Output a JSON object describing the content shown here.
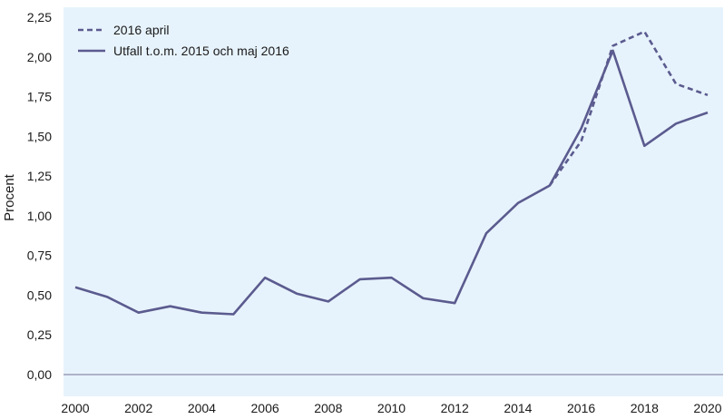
{
  "chart_data": {
    "type": "line",
    "title": "",
    "xlabel": "",
    "ylabel": "Procent",
    "xlim": [
      2000,
      2020
    ],
    "ylim": [
      0,
      2.25
    ],
    "x_ticks": [
      "2000",
      "2002",
      "2004",
      "2006",
      "2008",
      "2010",
      "2012",
      "2014",
      "2016",
      "2018",
      "2020"
    ],
    "y_ticks": [
      "0,00",
      "0,25",
      "0,50",
      "0,75",
      "1,00",
      "1,25",
      "1,50",
      "1,75",
      "2,00",
      "2,25"
    ],
    "grid": false,
    "legend_position": "top-left",
    "series": [
      {
        "name": "2016 april",
        "style": "dashed",
        "color": "#5b5b8f",
        "x": [
          2015,
          2016,
          2017,
          2018,
          2019,
          2020
        ],
        "y": [
          1.19,
          1.47,
          2.07,
          2.16,
          1.83,
          1.76
        ]
      },
      {
        "name": "Utfall t.o.m. 2015 och maj 2016",
        "style": "solid",
        "color": "#5b5b8f",
        "x": [
          2000,
          2001,
          2002,
          2003,
          2004,
          2005,
          2006,
          2007,
          2008,
          2009,
          2010,
          2011,
          2012,
          2013,
          2014,
          2015,
          2016,
          2017,
          2018,
          2019,
          2020
        ],
        "y": [
          0.55,
          0.49,
          0.39,
          0.43,
          0.39,
          0.38,
          0.61,
          0.51,
          0.46,
          0.6,
          0.61,
          0.48,
          0.45,
          0.89,
          1.08,
          1.19,
          1.55,
          2.04,
          1.44,
          1.58,
          1.65
        ]
      }
    ],
    "colors": {
      "plot_background": "#e7f3fc",
      "line": "#5b5b8f",
      "zero_line": "#8d8da8"
    }
  }
}
